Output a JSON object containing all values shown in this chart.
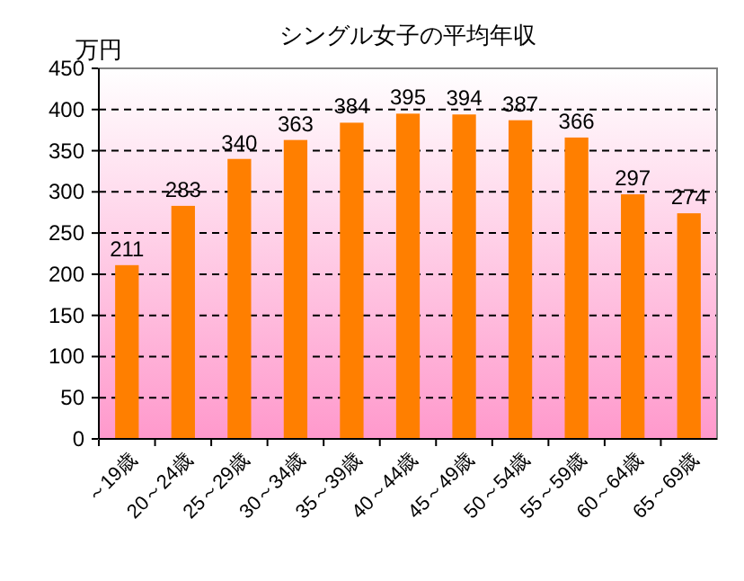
{
  "chart_data": {
    "type": "bar",
    "title": "シングル女子の平均年収",
    "ylabel": "万円",
    "categories": [
      "～19歳",
      "20～24歳",
      "25～29歳",
      "30～34歳",
      "35～39歳",
      "40～44歳",
      "45～49歳",
      "50～54歳",
      "55～59歳",
      "60～64歳",
      "65～69歳"
    ],
    "values": [
      211,
      283,
      340,
      363,
      384,
      395,
      394,
      387,
      366,
      297,
      274
    ],
    "color": "#ff7f00",
    "ylim": [
      0,
      450
    ],
    "yticks": [
      0,
      50,
      100,
      150,
      200,
      250,
      300,
      350,
      400,
      450
    ],
    "grid": "y",
    "data_labels": true
  }
}
